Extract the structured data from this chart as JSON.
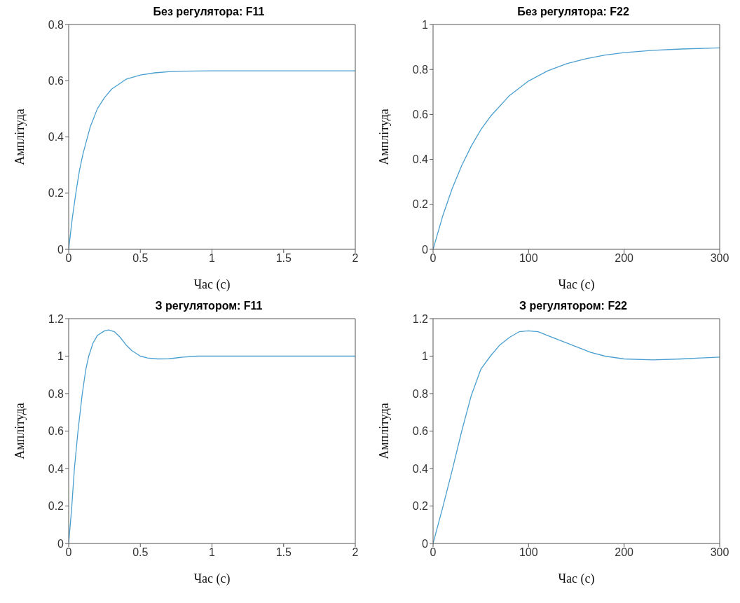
{
  "chart_data": [
    {
      "type": "line",
      "title": "Без регулятора: F11",
      "xlabel": "Час (с)",
      "ylabel": "Амплітуда",
      "xlim": [
        0,
        2
      ],
      "ylim": [
        0,
        0.8
      ],
      "xticks": [
        0,
        0.5,
        1,
        1.5,
        2
      ],
      "yticks": [
        0,
        0.2,
        0.4,
        0.6,
        0.8
      ],
      "x": [
        0,
        0.025,
        0.05,
        0.075,
        0.1,
        0.15,
        0.2,
        0.25,
        0.3,
        0.4,
        0.5,
        0.6,
        0.7,
        0.8,
        1,
        1.5,
        2
      ],
      "series": [
        {
          "color": "#4a9fd0",
          "values": [
            0,
            0.11,
            0.2,
            0.28,
            0.34,
            0.435,
            0.5,
            0.54,
            0.57,
            0.605,
            0.62,
            0.628,
            0.632,
            0.634,
            0.635,
            0.635,
            0.635
          ]
        }
      ]
    },
    {
      "type": "line",
      "title": "Без регулятора: F22",
      "xlabel": "Час (с)",
      "ylabel": "Амплітуда",
      "xlim": [
        0,
        300
      ],
      "ylim": [
        0,
        1
      ],
      "xticks": [
        0,
        100,
        200,
        300
      ],
      "yticks": [
        0,
        0.2,
        0.4,
        0.6,
        0.8,
        1
      ],
      "x": [
        0,
        10,
        20,
        30,
        40,
        50,
        60,
        80,
        100,
        120,
        140,
        160,
        180,
        200,
        230,
        260,
        300
      ],
      "series": [
        {
          "color": "#4a9fd0",
          "values": [
            0,
            0.147,
            0.27,
            0.373,
            0.459,
            0.532,
            0.591,
            0.684,
            0.749,
            0.794,
            0.826,
            0.848,
            0.864,
            0.875,
            0.885,
            0.891,
            0.896
          ]
        }
      ]
    },
    {
      "type": "line",
      "title": "З регулятором: F11",
      "xlabel": "Час (с)",
      "ylabel": "Амплітуда",
      "xlim": [
        0,
        2
      ],
      "ylim": [
        0,
        1.2
      ],
      "xticks": [
        0,
        0.5,
        1,
        1.5,
        2
      ],
      "yticks": [
        0,
        0.2,
        0.4,
        0.6,
        0.8,
        1,
        1.2
      ],
      "x": [
        0,
        0.02,
        0.04,
        0.065,
        0.095,
        0.12,
        0.14,
        0.17,
        0.2,
        0.25,
        0.28,
        0.32,
        0.36,
        0.4,
        0.44,
        0.5,
        0.55,
        0.62,
        0.7,
        0.8,
        0.9,
        1,
        1.5,
        2
      ],
      "series": [
        {
          "color": "#4a9fd0",
          "values": [
            0,
            0.18,
            0.4,
            0.6,
            0.8,
            0.93,
            1.0,
            1.07,
            1.11,
            1.135,
            1.14,
            1.13,
            1.1,
            1.06,
            1.03,
            1.0,
            0.99,
            0.985,
            0.986,
            0.995,
            1.0,
            1.0,
            1.0,
            1.0
          ]
        }
      ]
    },
    {
      "type": "line",
      "title": "З регулятором: F22",
      "xlabel": "Час (с)",
      "ylabel": "Амплітуда",
      "xlim": [
        0,
        300
      ],
      "ylim": [
        0,
        1.2
      ],
      "xticks": [
        0,
        100,
        200,
        300
      ],
      "yticks": [
        0,
        0.2,
        0.4,
        0.6,
        0.8,
        1,
        1.2
      ],
      "x": [
        0,
        10,
        20,
        30,
        40,
        50,
        60,
        70,
        80,
        90,
        100,
        110,
        120,
        135,
        150,
        165,
        180,
        200,
        230,
        260,
        280,
        300
      ],
      "series": [
        {
          "color": "#4a9fd0",
          "values": [
            0,
            0.19,
            0.39,
            0.6,
            0.79,
            0.93,
            1.0,
            1.06,
            1.1,
            1.13,
            1.135,
            1.13,
            1.11,
            1.08,
            1.05,
            1.02,
            1.0,
            0.985,
            0.98,
            0.985,
            0.99,
            0.995
          ]
        }
      ]
    }
  ]
}
